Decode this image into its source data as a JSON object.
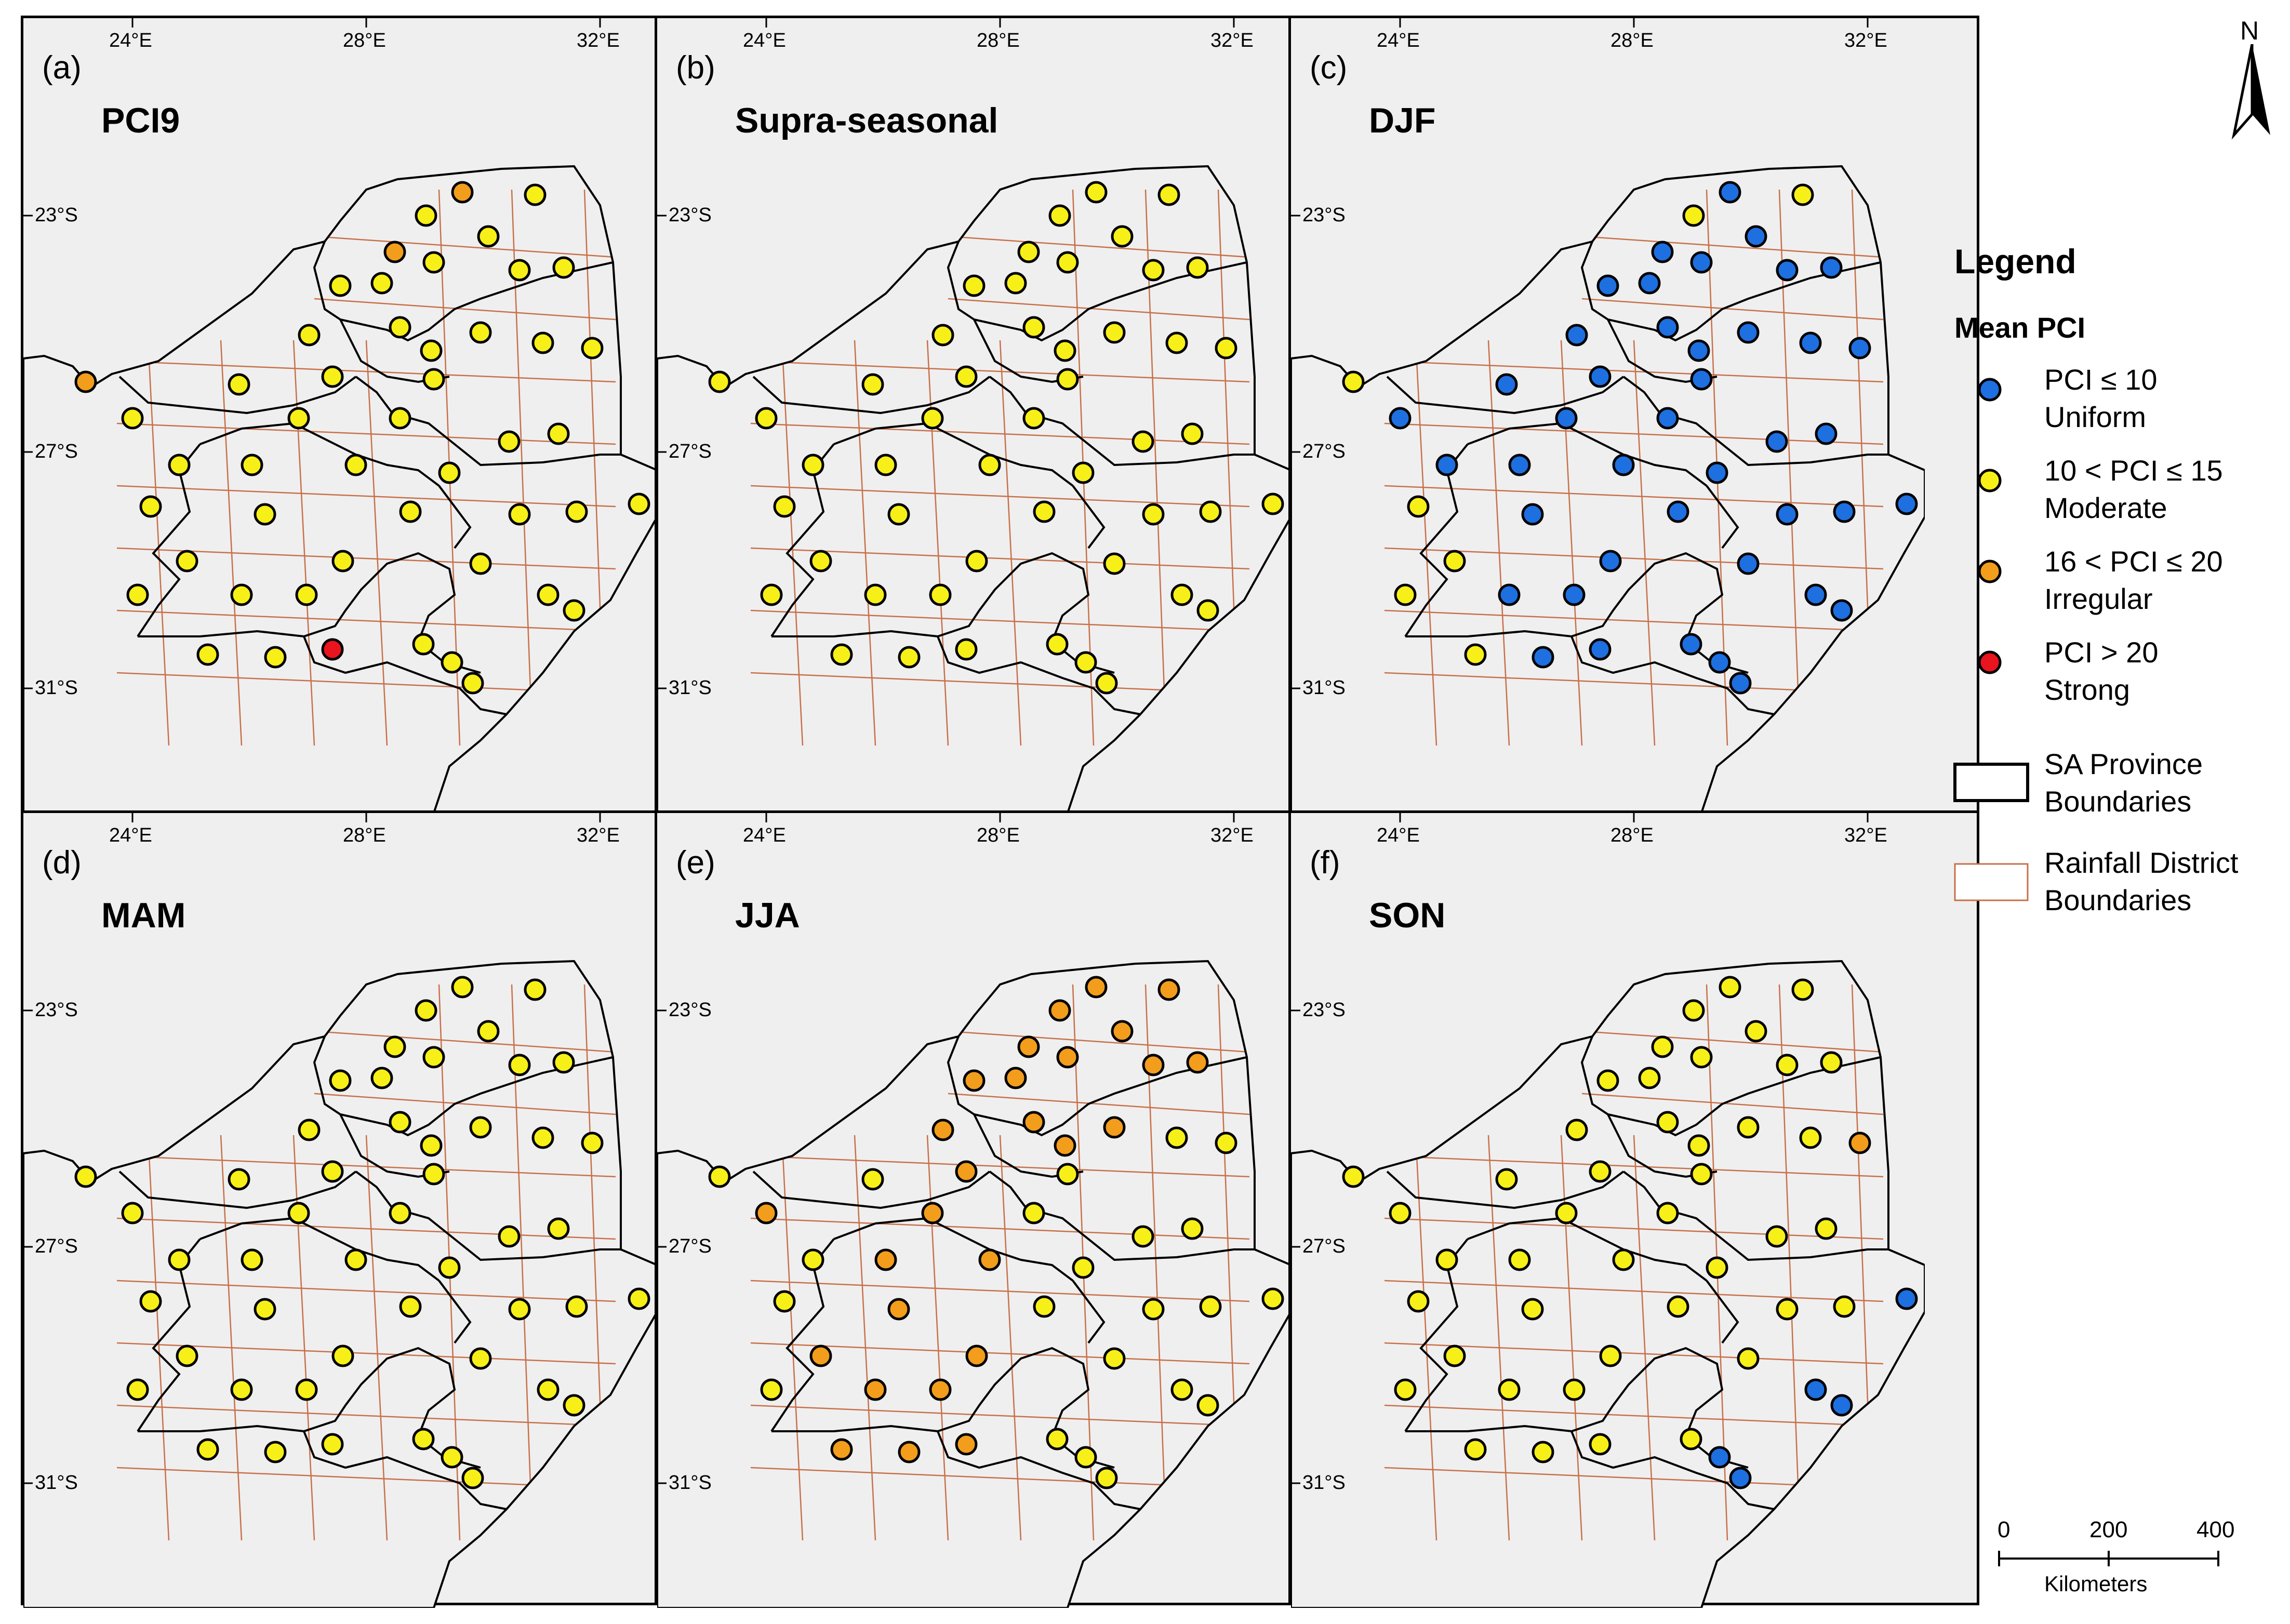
{
  "panels": [
    {
      "letter": "(a)",
      "title": "PCI9"
    },
    {
      "letter": "(b)",
      "title": "Supra-seasonal"
    },
    {
      "letter": "(c)",
      "title": "DJF"
    },
    {
      "letter": "(d)",
      "title": "MAM"
    },
    {
      "letter": "(e)",
      "title": "JJA"
    },
    {
      "letter": "(f)",
      "title": "SON"
    }
  ],
  "ticks": {
    "lon": [
      "24°E",
      "28°E",
      "32°E"
    ],
    "lat": [
      "23°S",
      "27°S",
      "31°S"
    ]
  },
  "north_label": "N",
  "legend": {
    "title": "Legend",
    "subtitle": "Mean PCI",
    "items": [
      {
        "line1": "PCI ≤ 10",
        "line2": "Uniform",
        "color": "#1e6fe0"
      },
      {
        "line1": "10 < PCI ≤ 15",
        "line2": "Moderate",
        "color": "#f7ef18"
      },
      {
        "line1": "16 < PCI ≤ 20",
        "line2": "Irregular",
        "color": "#f29d1c"
      },
      {
        "line1": "PCI > 20",
        "line2": "Strong",
        "color": "#e8141e"
      }
    ],
    "province": {
      "line1": "SA Province",
      "line2": "Boundaries"
    },
    "district": {
      "line1": "Rainfall District",
      "line2": "Boundaries"
    }
  },
  "scale_bar": {
    "labels": [
      "0",
      "200",
      "400"
    ],
    "unit": "Kilometers"
  },
  "colors": {
    "uniform": "#1e6fe0",
    "moderate": "#f7ef18",
    "irregular": "#f29d1c",
    "strong": "#e8141e",
    "district": "#c8704a",
    "background": "#efefef"
  }
}
